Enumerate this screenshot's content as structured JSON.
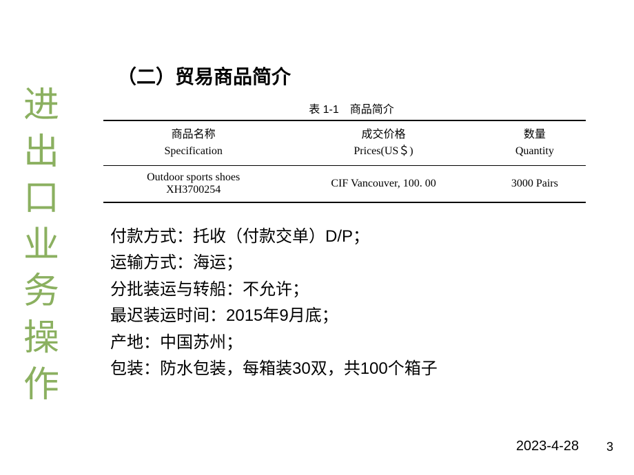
{
  "sidebar": {
    "chars": [
      "进",
      "出",
      "口",
      "业",
      "务",
      "操",
      "作"
    ],
    "color": "#8bb060",
    "fontsize": 52
  },
  "section": {
    "title": "（二）贸易商品简介"
  },
  "table": {
    "caption": "表 1-1　商品简介",
    "columns": [
      {
        "cn": "商品名称",
        "en": "Specification"
      },
      {
        "cn": "成交价格",
        "en": "Prices(US＄)"
      },
      {
        "cn": "数量",
        "en": "Quantity"
      }
    ],
    "rows": [
      {
        "cells": [
          {
            "line1": "Outdoor sports shoes",
            "line2": "XH3700254"
          },
          {
            "line1": "CIF Vancouver, 100. 00",
            "line2": ""
          },
          {
            "line1": "3000 Pairs",
            "line2": ""
          }
        ]
      }
    ],
    "border_color": "#000000"
  },
  "details": [
    "付款方式：托收（付款交单）D/P；",
    "运输方式：海运；",
    "分批装运与转船：不允许；",
    "最迟装运时间：2015年9月底；",
    "产地：中国苏州；",
    "包装：防水包装，每箱装30双，共100个箱子"
  ],
  "footer": {
    "date": "2023-4-28",
    "page": "3"
  },
  "colors": {
    "background": "#ffffff",
    "text": "#000000",
    "sidebar_text": "#8bb060"
  }
}
